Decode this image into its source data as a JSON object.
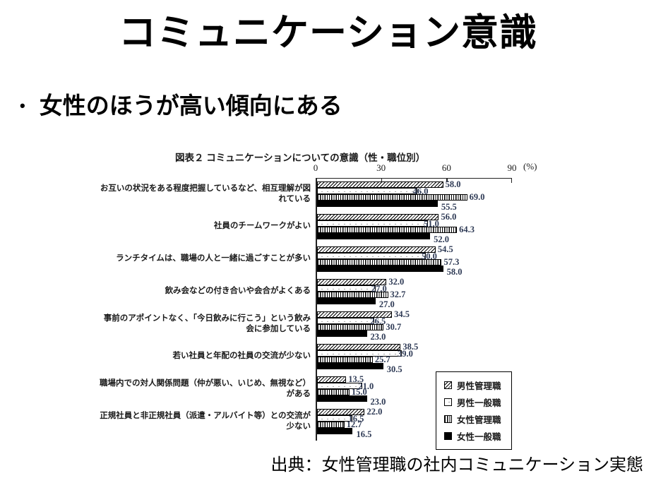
{
  "slide": {
    "title": "コミュニケーション意識",
    "bullet_marker": "•",
    "bullet": "女性のほうが高い傾向にある",
    "source": "出典：女性管理職の社内コミュニケーション実態"
  },
  "chart_data": {
    "type": "bar",
    "orientation": "horizontal",
    "title": "図表２ コミュニケーションについての意識（性・職位別）",
    "percent_label": "(%)",
    "xlim": [
      0,
      90
    ],
    "xticks": [
      0,
      30,
      60,
      90
    ],
    "grid": false,
    "legend_position": "inside-bottom-right",
    "value_label_color": "#2e3a55",
    "categories": [
      "お互いの状況をある程度把握しているなど、相互理解が図れている",
      "社員のチームワークがよい",
      "ランチタイムは、職場の人と一緒に過ごすことが多い",
      "飲み会などの付き合いや会合がよくある",
      "事前のアポイントなく、「今日飲みに行こう」という飲み会に参加している",
      "若い社員と年配の社員の交流が少ない",
      "職場内での対人関係問題（仲が悪い、いじめ、無視など）がある",
      "正規社員と非正規社員（派遣・アルバイト等）との交流が少ない"
    ],
    "series": [
      {
        "name": "男性管理職",
        "pattern": "diagonal-hatch",
        "values": [
          58.0,
          56.0,
          54.5,
          32.0,
          34.5,
          38.5,
          13.5,
          22.0
        ]
      },
      {
        "name": "男性一般職",
        "pattern": "white",
        "values": [
          46.0,
          51.0,
          50.0,
          27.0,
          26.5,
          39.0,
          21.0,
          16.5
        ]
      },
      {
        "name": "女性管理職",
        "pattern": "vertical-stripe",
        "values": [
          69.0,
          64.3,
          57.3,
          32.7,
          30.7,
          25.7,
          15.0,
          12.7
        ]
      },
      {
        "name": "女性一般職",
        "pattern": "solid-black",
        "values": [
          55.5,
          52.0,
          58.0,
          27.0,
          23.0,
          30.5,
          23.0,
          16.5
        ]
      }
    ]
  }
}
